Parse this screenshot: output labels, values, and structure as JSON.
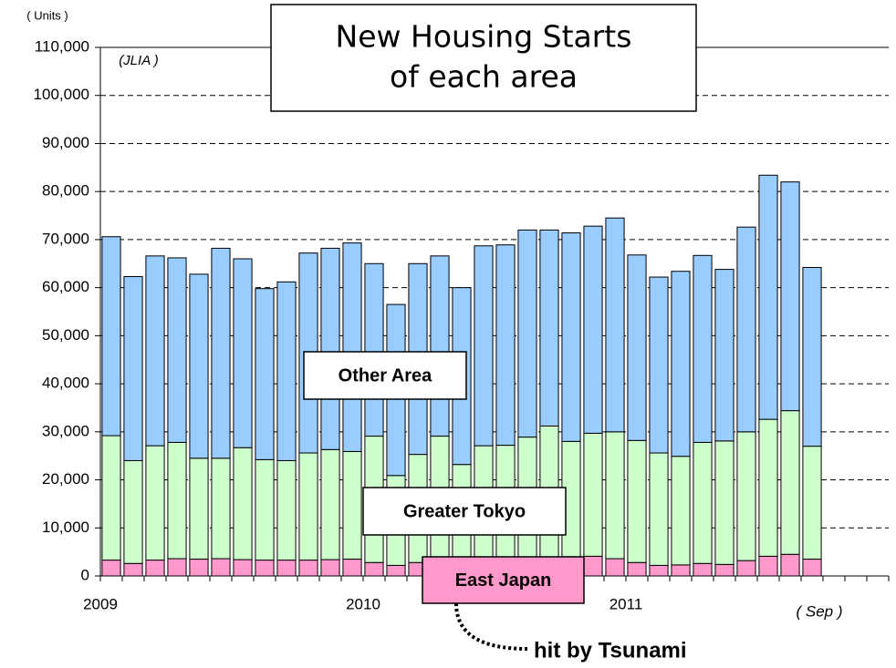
{
  "chart_data": {
    "type": "stacked_bar",
    "title": [
      "New Housing Starts",
      "of each area"
    ],
    "y_unit_label": "( Units )",
    "source": "(JLIA )",
    "end_label": "( Sep )",
    "annotation": "hit by Tsunami",
    "categories": [
      "2009",
      null,
      null,
      null,
      null,
      null,
      null,
      null,
      null,
      null,
      null,
      null,
      "2010",
      null,
      null,
      null,
      null,
      null,
      null,
      null,
      null,
      null,
      null,
      null,
      "2011",
      null,
      null,
      null,
      null,
      null,
      null,
      null,
      null
    ],
    "series": [
      {
        "name": "East Japan",
        "color": "#ff99cc",
        "values": [
          3300,
          2600,
          3300,
          3600,
          3500,
          3600,
          3400,
          3300,
          3300,
          3300,
          3400,
          3500,
          2800,
          2200,
          2800,
          3000,
          3000,
          3200,
          3300,
          3600,
          3700,
          4000,
          4100,
          3600,
          2800,
          2200,
          2300,
          2600,
          2400,
          3200,
          4100,
          4500,
          3500
        ]
      },
      {
        "name": "Greater Tokyo",
        "color": "#ccffcc",
        "values": [
          25900,
          21400,
          23800,
          24200,
          21000,
          20900,
          23300,
          20900,
          20700,
          22300,
          22900,
          22400,
          26300,
          18700,
          22500,
          26100,
          20200,
          23900,
          23900,
          25300,
          27500,
          24000,
          25600,
          26400,
          25400,
          23400,
          22600,
          25200,
          25700,
          26800,
          28500,
          29900,
          23500
        ]
      },
      {
        "name": "Other Area",
        "color": "#99ccff",
        "values": [
          41400,
          38300,
          39500,
          38400,
          38300,
          43700,
          39300,
          35600,
          37200,
          41600,
          41900,
          43400,
          35900,
          35600,
          39700,
          37500,
          36800,
          41600,
          41700,
          43100,
          40800,
          43400,
          43100,
          44500,
          38600,
          36600,
          38500,
          38900,
          35700,
          42600,
          50800,
          47600,
          37200
        ]
      }
    ],
    "ylim": [
      0,
      110000
    ],
    "yticks": [
      0,
      {
        "value": 10000,
        "label": "10,000"
      },
      {
        "value": 20000,
        "label": "20,000"
      },
      {
        "value": 30000,
        "label": "30,000"
      },
      {
        "value": 40000,
        "label": "40,000"
      },
      {
        "value": 50000,
        "label": "50,000"
      },
      {
        "value": 60000,
        "label": "60,000"
      },
      {
        "value": 70000,
        "label": "70,000"
      },
      {
        "value": 80000,
        "label": "80,000"
      },
      {
        "value": 90000,
        "label": "90,000"
      },
      {
        "value": 100000,
        "label": "100,000"
      },
      {
        "value": 110000,
        "label": "110,000"
      }
    ],
    "grid": true
  }
}
